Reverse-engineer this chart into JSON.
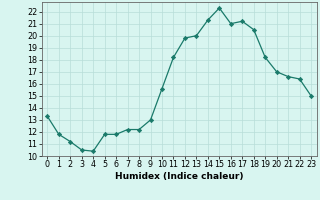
{
  "x": [
    0,
    1,
    2,
    3,
    4,
    5,
    6,
    7,
    8,
    9,
    10,
    11,
    12,
    13,
    14,
    15,
    16,
    17,
    18,
    19,
    20,
    21,
    22,
    23
  ],
  "y": [
    13.3,
    11.8,
    11.2,
    10.5,
    10.4,
    11.8,
    11.8,
    12.2,
    12.2,
    13.0,
    15.6,
    18.2,
    19.8,
    20.0,
    21.3,
    22.3,
    21.0,
    21.2,
    20.5,
    18.2,
    17.0,
    16.6,
    16.4,
    15.0
  ],
  "line_color": "#1a7a6a",
  "marker": "D",
  "marker_size": 2.2,
  "bg_color": "#d8f5f0",
  "grid_color": "#b8ddd8",
  "xlabel": "Humidex (Indice chaleur)",
  "xlim": [
    -0.5,
    23.5
  ],
  "ylim": [
    10,
    22.8
  ],
  "yticks": [
    10,
    11,
    12,
    13,
    14,
    15,
    16,
    17,
    18,
    19,
    20,
    21,
    22
  ],
  "xticks": [
    0,
    1,
    2,
    3,
    4,
    5,
    6,
    7,
    8,
    9,
    10,
    11,
    12,
    13,
    14,
    15,
    16,
    17,
    18,
    19,
    20,
    21,
    22,
    23
  ],
  "label_fontsize": 6.5,
  "tick_fontsize": 5.8
}
